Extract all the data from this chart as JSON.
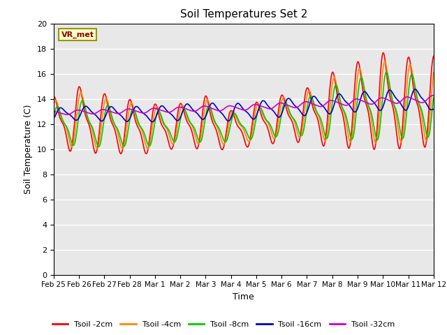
{
  "title": "Soil Temperatures Set 2",
  "xlabel": "Time",
  "ylabel": "Soil Temperature (C)",
  "ylim": [
    0,
    20
  ],
  "yticks": [
    0,
    2,
    4,
    6,
    8,
    10,
    12,
    14,
    16,
    18,
    20
  ],
  "x_labels": [
    "Feb 25",
    "Feb 26",
    "Feb 27",
    "Feb 28",
    "Mar 1",
    "Mar 2",
    "Mar 3",
    "Mar 4",
    "Mar 5",
    "Mar 6",
    "Mar 7",
    "Mar 8",
    "Mar 9",
    "Mar 10",
    "Mar 11",
    "Mar 12"
  ],
  "colors": {
    "Tsoil -2cm": "#ff0000",
    "Tsoil -4cm": "#ff8800",
    "Tsoil -8cm": "#00cc00",
    "Tsoil -16cm": "#0000cc",
    "Tsoil -32cm": "#cc00cc"
  },
  "background_color": "#e8e8e8",
  "annotation_text": "VR_met",
  "annotation_box_facecolor": "#ffffcc",
  "annotation_box_edgecolor": "#999900",
  "annotation_text_color": "#880000",
  "legend_labels": [
    "Tsoil -2cm",
    "Tsoil -4cm",
    "Tsoil -8cm",
    "Tsoil -16cm",
    "Tsoil -32cm"
  ]
}
